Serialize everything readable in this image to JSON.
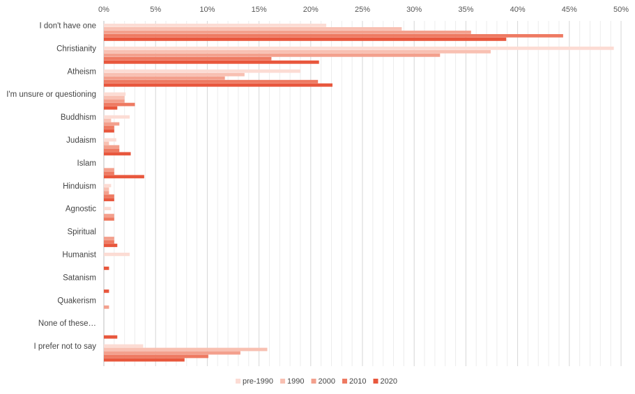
{
  "chart_data": {
    "type": "bar",
    "orientation": "horizontal",
    "title": "",
    "xlabel": "",
    "ylabel": "",
    "xlim": [
      0,
      50
    ],
    "x_ticks": [
      "0%",
      "5%",
      "10%",
      "15%",
      "20%",
      "25%",
      "30%",
      "35%",
      "40%",
      "45%",
      "50%"
    ],
    "tick_values": [
      0,
      5,
      10,
      15,
      20,
      25,
      30,
      35,
      40,
      45,
      50
    ],
    "minor_grid_step": 1,
    "grid": true,
    "legend_position": "bottom-center",
    "categories": [
      "I don't have one",
      "Christianity",
      "Atheism",
      "I'm unsure or questioning",
      "Buddhism",
      "Judaism",
      "Islam",
      "Hinduism",
      "Agnostic",
      "Spiritual",
      "Humanist",
      "Satanism",
      "Quakerism",
      "None of these…",
      "I prefer not to say"
    ],
    "series": [
      {
        "name": "pre-1990",
        "color": "#fcdcd4",
        "values": [
          21.5,
          49.3,
          19.0,
          2.1,
          2.5,
          1.2,
          0,
          0.7,
          0.7,
          0,
          2.5,
          0,
          0,
          0,
          3.8
        ]
      },
      {
        "name": "1990",
        "color": "#f8c0b2",
        "values": [
          28.8,
          37.4,
          13.6,
          2.0,
          0.7,
          0.5,
          0,
          0.5,
          0,
          0,
          0,
          0,
          0,
          0,
          15.8
        ]
      },
      {
        "name": "2000",
        "color": "#f3a08d",
        "values": [
          35.5,
          32.5,
          11.7,
          2.0,
          1.5,
          1.5,
          1.0,
          0.5,
          1.0,
          1.0,
          0,
          0,
          0.5,
          0,
          13.2
        ]
      },
      {
        "name": "2010",
        "color": "#ee7a62",
        "values": [
          44.4,
          16.2,
          20.7,
          3.0,
          1.0,
          1.5,
          1.0,
          1.0,
          1.0,
          1.0,
          0,
          0,
          0,
          0,
          10.1
        ]
      },
      {
        "name": "2020",
        "color": "#e8573d",
        "values": [
          38.9,
          20.8,
          22.1,
          1.3,
          1.0,
          2.6,
          3.9,
          1.0,
          0,
          1.3,
          0.5,
          0.5,
          0,
          1.3,
          7.8
        ]
      }
    ]
  }
}
